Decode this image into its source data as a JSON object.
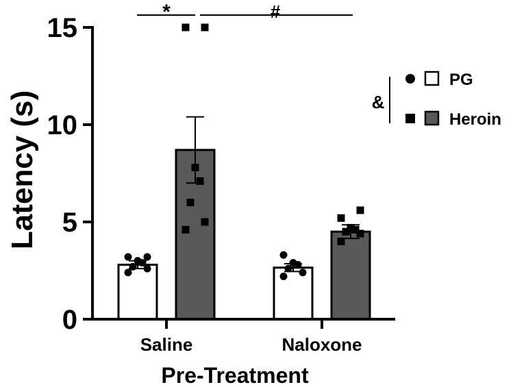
{
  "chart_data": {
    "type": "bar",
    "title": "",
    "xlabel": "Pre-Treatment",
    "ylabel": "Latency (s)",
    "ylim": [
      0,
      15
    ],
    "yticks": [
      "0",
      "5",
      "10",
      "15"
    ],
    "categories": [
      "Saline",
      "Naloxone"
    ],
    "series": [
      {
        "name": "PG",
        "marker": "circle",
        "fill": "#ffffff",
        "values": [
          2.8,
          2.65
        ],
        "errors": [
          0.2,
          0.2
        ],
        "points": [
          [
            2.4,
            2.6,
            2.7,
            2.9,
            3.0,
            3.2,
            3.2
          ],
          [
            2.2,
            2.4,
            2.6,
            2.8,
            2.9,
            3.3
          ]
        ]
      },
      {
        "name": "Heroin",
        "marker": "square",
        "fill": "#595959",
        "values": [
          8.7,
          4.5
        ],
        "errors": [
          1.7,
          0.35
        ],
        "points": [
          [
            4.6,
            5.0,
            6.0,
            7.1,
            7.8,
            15.0,
            15.0
          ],
          [
            4.0,
            4.4,
            4.5,
            4.6,
            4.7,
            5.2,
            5.6
          ]
        ]
      }
    ],
    "annotations": {
      "star": "*",
      "hash": "#",
      "amp": "&"
    },
    "legend_position": "right"
  }
}
